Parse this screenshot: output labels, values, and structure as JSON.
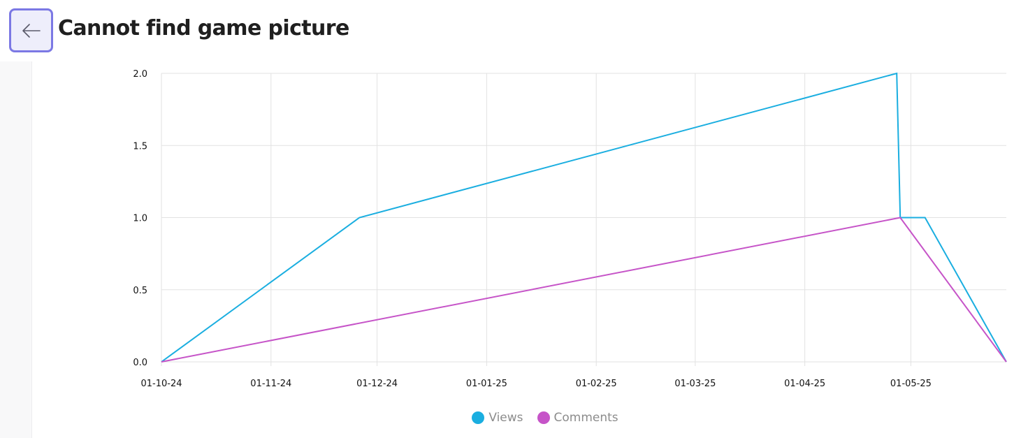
{
  "header": {
    "title": "Cannot find game picture",
    "back_icon": "arrow-left-icon"
  },
  "chart_data": {
    "type": "line",
    "x_ticks": [
      "01-10-24",
      "01-11-24",
      "01-12-24",
      "01-01-25",
      "01-02-25",
      "01-03-25",
      "01-04-25",
      "01-05-25"
    ],
    "x_tick_dates": [
      "2024-10-01",
      "2024-11-01",
      "2024-12-01",
      "2025-01-01",
      "2025-02-01",
      "2025-03-01",
      "2025-04-01",
      "2025-05-01"
    ],
    "x_range": [
      "2024-10-01",
      "2025-05-28"
    ],
    "ylim": [
      0,
      2
    ],
    "y_ticks": [
      "0.0",
      "0.5",
      "1.0",
      "1.5",
      "2.0"
    ],
    "y_tick_values": [
      0,
      0.5,
      1,
      1.5,
      2
    ],
    "grid": true,
    "legend_position": "bottom",
    "series": [
      {
        "name": "Views",
        "color": "#1aaee0",
        "points": [
          {
            "x": "2024-10-01",
            "y": 0
          },
          {
            "x": "2024-11-26",
            "y": 1
          },
          {
            "x": "2025-04-27",
            "y": 2
          },
          {
            "x": "2025-04-28",
            "y": 1
          },
          {
            "x": "2025-05-05",
            "y": 1
          },
          {
            "x": "2025-05-28",
            "y": 0
          }
        ]
      },
      {
        "name": "Comments",
        "color": "#c654c8",
        "points": [
          {
            "x": "2024-10-01",
            "y": 0
          },
          {
            "x": "2025-04-28",
            "y": 1
          },
          {
            "x": "2025-05-28",
            "y": 0
          }
        ]
      }
    ]
  }
}
